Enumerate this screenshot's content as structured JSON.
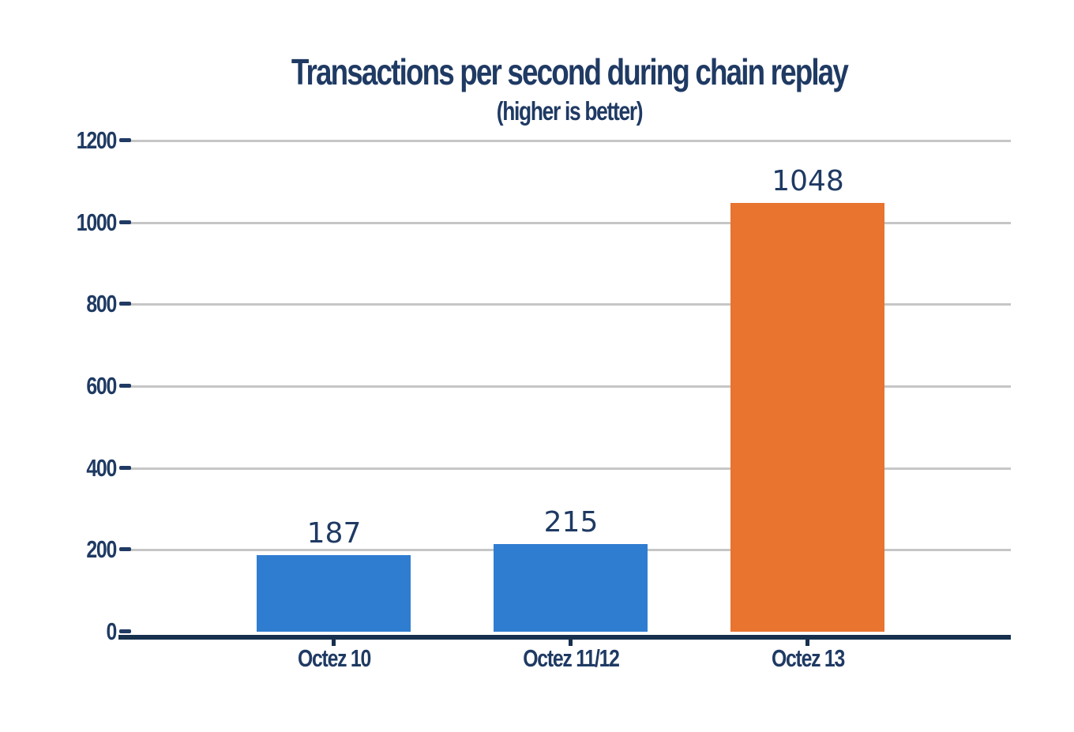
{
  "chart_data": {
    "type": "bar",
    "title": "Transactions per second during chain replay",
    "subtitle": "(higher is better)",
    "categories": [
      "Octez 10",
      "Octez 11/12",
      "Octez 13"
    ],
    "values": [
      187,
      215,
      1048
    ],
    "value_labels": [
      "187",
      "215",
      "1048"
    ],
    "series": [
      {
        "name": "Transactions per second",
        "values": [
          187,
          215,
          1048
        ]
      }
    ],
    "bar_colors": [
      "#2f7dd1",
      "#2f7dd1",
      "#e8742f"
    ],
    "yticks": [
      0,
      200,
      400,
      600,
      800,
      1000,
      1200
    ],
    "ylim": [
      0,
      1200
    ],
    "xlabel": "",
    "ylabel": "",
    "grid": "horizontal",
    "legend": "none",
    "colors": {
      "text_navy": "#1f3a63",
      "axis_navy": "#17304e",
      "gridline_gray": "#c6c6c6",
      "bar_blue": "#2f7dd1",
      "bar_orange": "#e8742f",
      "plot_background": "#ffffff"
    }
  }
}
